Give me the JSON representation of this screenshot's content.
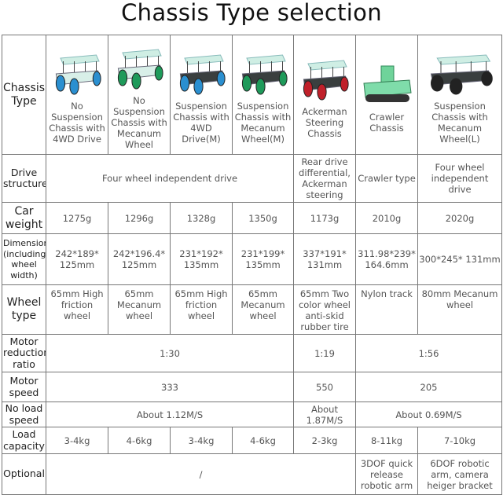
{
  "title": "Chassis Type selection",
  "colors": {
    "border": "#777777",
    "text": "#555555",
    "header_text": "#222222"
  },
  "rows": {
    "chassis_type": {
      "label": "Chassis Type",
      "values": [
        {
          "name": "No Suspension Chassis with 4WD Drive",
          "image": "chassis-photo",
          "wheel_color": "#2a8fd0"
        },
        {
          "name": "No Suspension Chassis with Mecanum Wheel",
          "image": "chassis-photo",
          "wheel_color": "#1e9a5a"
        },
        {
          "name": "Suspension Chassis with 4WD Drive(M)",
          "image": "chassis-photo",
          "wheel_color": "#2a8fd0"
        },
        {
          "name": "Suspension Chassis with Mecanum Wheel(M)",
          "image": "chassis-photo",
          "wheel_color": "#1e9a5a"
        },
        {
          "name": "Ackerman Steering Chassis",
          "image": "chassis-photo",
          "wheel_color": "#c0202a"
        },
        {
          "name": "Crawler Chassis",
          "image": "chassis-photo",
          "wheel_color": "#222222"
        },
        {
          "name": "Suspension Chassis with Mecanum Wheel(L)",
          "image": "chassis-photo",
          "wheel_color": "#222222"
        }
      ]
    },
    "drive_structure": {
      "label": "Drive structure",
      "values": [
        "Four wheel independent drive",
        "Rear drive differential, Ackerman steering",
        "Crawler type",
        "Four wheel independent drive"
      ]
    },
    "car_weight": {
      "label": "Car weight",
      "values": [
        "1275g",
        "1296g",
        "1328g",
        "1350g",
        "1173g",
        "2010g",
        "2020g"
      ]
    },
    "dimension": {
      "label": "Dimension (including wheel width)",
      "values": [
        "242*189* 125mm",
        "242*196.4* 125mm",
        "231*192* 135mm",
        "231*199* 135mm",
        "337*191* 131mm",
        "311.98*239* 164.6mm",
        "300*245* 131mm"
      ]
    },
    "wheel_type": {
      "label": "Wheel type",
      "values": [
        "65mm High friction wheel",
        "65mm Mecanum wheel",
        "65mm High friction wheel",
        "65mm Mecanum wheel",
        "65mm Two color wheel anti-skid rubber tire",
        "Nylon track",
        "80mm Mecanum wheel"
      ]
    },
    "motor_reduction_ratio": {
      "label": "Motor reduction ratio",
      "values": [
        "1:30",
        "1:19",
        "1:56"
      ]
    },
    "motor_speed": {
      "label": "Motor speed",
      "values": [
        "333",
        "550",
        "205"
      ]
    },
    "no_load_speed": {
      "label": "No load speed",
      "values": [
        "About 1.12M/S",
        "About 1.87M/S",
        "About 0.69M/S"
      ]
    },
    "load_capacity": {
      "label": "Load capacity",
      "values": [
        "3-4kg",
        "4-6kg",
        "3-4kg",
        "4-6kg",
        "2-3kg",
        "8-11kg",
        "7-10kg"
      ]
    },
    "optional": {
      "label": "Optional",
      "values": [
        "/",
        "3DOF quick release robotic arm",
        "6DOF robotic arm, camera heiger bracket"
      ]
    }
  }
}
